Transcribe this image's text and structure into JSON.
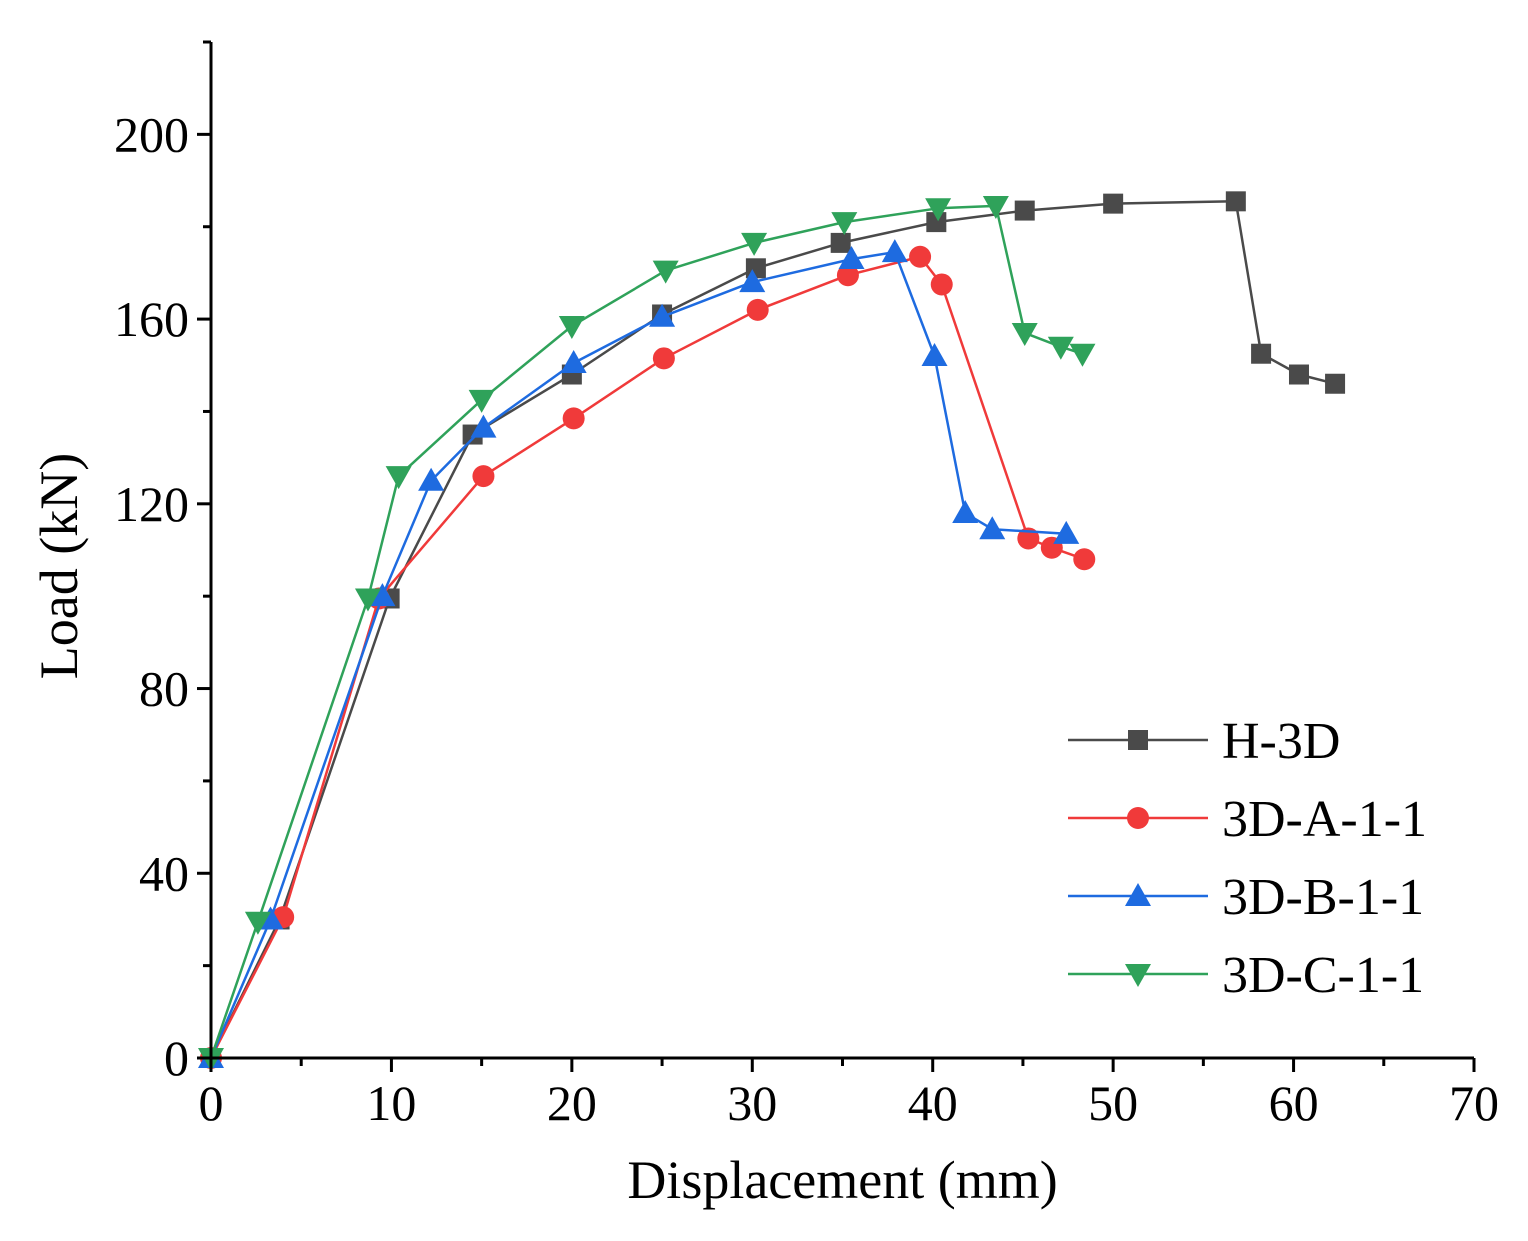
{
  "chart_data": {
    "type": "line",
    "title": "",
    "xlabel": "Displacement (mm)",
    "ylabel": "Load (kN)",
    "xlim": [
      0,
      70
    ],
    "ylim": [
      0,
      220
    ],
    "x_ticks": [
      0,
      10,
      20,
      30,
      40,
      50,
      60,
      70
    ],
    "y_ticks": [
      0,
      40,
      80,
      120,
      160,
      200
    ],
    "x_tick_labels": [
      "0",
      "10",
      "20",
      "30",
      "40",
      "50",
      "60",
      "70"
    ],
    "y_tick_labels": [
      "0",
      "40",
      "80",
      "120",
      "160",
      "200"
    ],
    "grid": false,
    "legend_position": "bottom-right",
    "series": [
      {
        "name": "H-3D",
        "color": "#4a4a4a",
        "marker": "square",
        "x": [
          0,
          3.8,
          9.9,
          14.5,
          20.0,
          25.0,
          30.2,
          34.9,
          40.2,
          45.1,
          50.0,
          56.8,
          58.2,
          60.3,
          62.3
        ],
        "y": [
          0,
          30,
          99.5,
          135,
          148,
          161,
          171,
          176.5,
          181,
          183.5,
          185,
          185.5,
          152.5,
          148,
          146
        ]
      },
      {
        "name": "3D-A-1-1",
        "color": "#f03a3a",
        "marker": "circle",
        "x": [
          0,
          4.0,
          9.3,
          15.1,
          20.1,
          25.1,
          30.3,
          35.3,
          39.3,
          40.5,
          45.3,
          46.6,
          48.4
        ],
        "y": [
          0,
          30.5,
          99.5,
          126,
          138.5,
          151.5,
          162,
          169.5,
          173.5,
          167.5,
          112.5,
          110.5,
          108
        ]
      },
      {
        "name": "3D-B-1-1",
        "color": "#1e6be0",
        "marker": "triangle-up",
        "x": [
          0,
          3.3,
          9.5,
          12.2,
          15.1,
          20.1,
          25.0,
          30.0,
          35.5,
          37.9,
          40.1,
          41.8,
          43.3,
          47.4
        ],
        "y": [
          0,
          30,
          100,
          125,
          136.5,
          150.5,
          160.5,
          168,
          173,
          174.5,
          152,
          118,
          114.5,
          113.5
        ]
      },
      {
        "name": "3D-C-1-1",
        "color": "#2fa25a",
        "marker": "triangle-down",
        "x": [
          0,
          2.6,
          8.7,
          10.4,
          15.0,
          20.0,
          25.2,
          30.1,
          35.1,
          40.3,
          43.5,
          45.1,
          47.1,
          48.3
        ],
        "y": [
          0,
          29.5,
          99.5,
          126,
          142.5,
          158.5,
          170.5,
          176.5,
          181,
          184,
          184.5,
          157,
          154,
          152.5
        ]
      }
    ]
  }
}
